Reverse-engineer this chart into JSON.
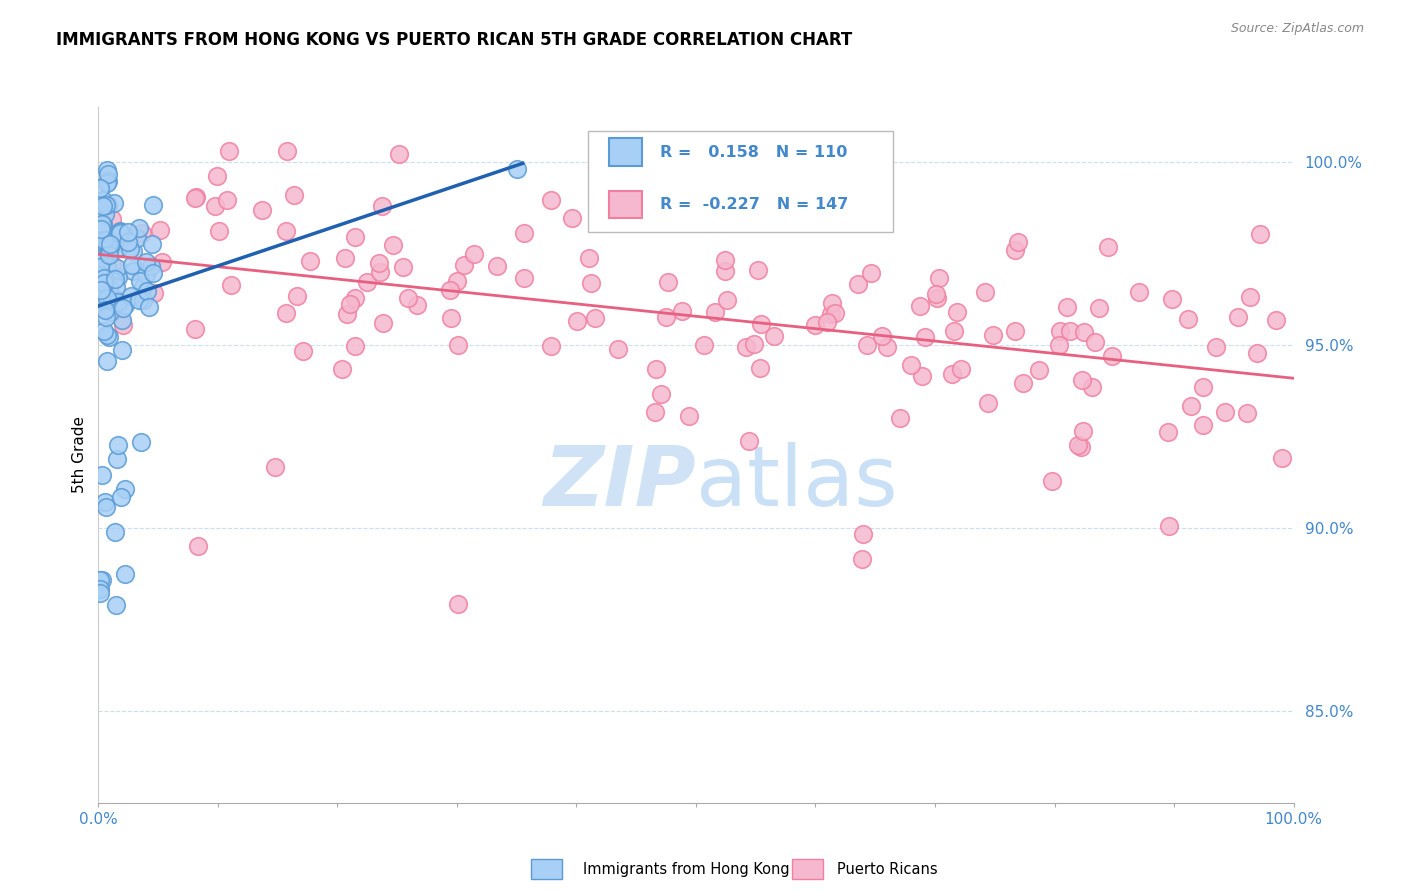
{
  "title": "IMMIGRANTS FROM HONG KONG VS PUERTO RICAN 5TH GRADE CORRELATION CHART",
  "source": "Source: ZipAtlas.com",
  "ylabel": "5th Grade",
  "xlim": [
    0.0,
    1.0
  ],
  "ylim": [
    0.825,
    1.015
  ],
  "yticks": [
    0.85,
    0.9,
    0.95,
    1.0
  ],
  "ytick_labels": [
    "85.0%",
    "90.0%",
    "95.0%",
    "100.0%"
  ],
  "xticks": [
    0.0,
    0.1,
    0.2,
    0.3,
    0.4,
    0.5,
    0.6,
    0.7,
    0.8,
    0.9,
    1.0
  ],
  "xtick_labels": [
    "0.0%",
    "",
    "",
    "",
    "",
    "",
    "",
    "",
    "",
    "",
    "100.0%"
  ],
  "blue_R": "0.158",
  "blue_N": "110",
  "pink_R": "-0.227",
  "pink_N": "147",
  "blue_color": "#A8CFF5",
  "pink_color": "#F5B8CE",
  "blue_edge_color": "#5A9BD5",
  "pink_edge_color": "#F080A0",
  "blue_line_color": "#2060B0",
  "pink_line_color": "#E86080",
  "legend_label_blue": "Immigrants from Hong Kong",
  "legend_label_pink": "Puerto Ricans",
  "watermark_color": "#C8DFF5",
  "grid_color": "#C8DFF5",
  "tick_label_color": "#4488CC",
  "title_color": "#000000",
  "source_color": "#888888"
}
